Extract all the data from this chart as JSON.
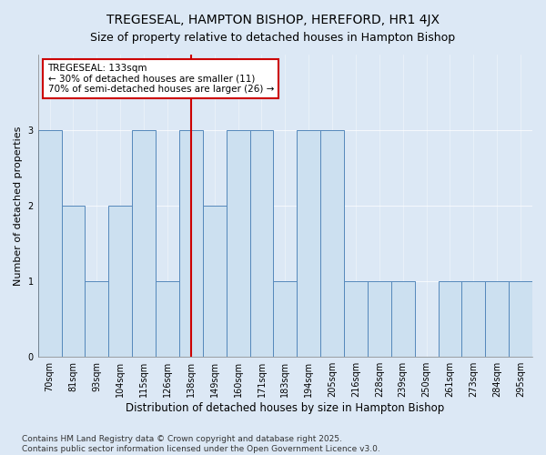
{
  "title": "TREGESEAL, HAMPTON BISHOP, HEREFORD, HR1 4JX",
  "subtitle": "Size of property relative to detached houses in Hampton Bishop",
  "xlabel": "Distribution of detached houses by size in Hampton Bishop",
  "ylabel": "Number of detached properties",
  "categories": [
    "70sqm",
    "81sqm",
    "93sqm",
    "104sqm",
    "115sqm",
    "126sqm",
    "138sqm",
    "149sqm",
    "160sqm",
    "171sqm",
    "183sqm",
    "194sqm",
    "205sqm",
    "216sqm",
    "228sqm",
    "239sqm",
    "250sqm",
    "261sqm",
    "273sqm",
    "284sqm",
    "295sqm"
  ],
  "values": [
    3,
    2,
    1,
    2,
    3,
    1,
    3,
    2,
    3,
    3,
    1,
    3,
    3,
    1,
    1,
    1,
    0,
    1,
    1,
    1,
    1
  ],
  "bar_color": "#cce0f0",
  "bar_edge_color": "#5588bb",
  "vline_x_idx": 6,
  "vline_color": "#cc0000",
  "annotation_text": "TREGESEAL: 133sqm\n← 30% of detached houses are smaller (11)\n70% of semi-detached houses are larger (26) →",
  "annotation_box_facecolor": "#ffffff",
  "annotation_box_edgecolor": "#cc0000",
  "ylim": [
    0,
    4
  ],
  "yticks": [
    0,
    1,
    2,
    3
  ],
  "background_color": "#dce8f5",
  "plot_bg_color": "#dce8f5",
  "footer": "Contains HM Land Registry data © Crown copyright and database right 2025.\nContains public sector information licensed under the Open Government Licence v3.0.",
  "title_fontsize": 10,
  "subtitle_fontsize": 9,
  "xlabel_fontsize": 8.5,
  "ylabel_fontsize": 8,
  "tick_fontsize": 7,
  "footer_fontsize": 6.5,
  "ann_fontsize": 7.5
}
